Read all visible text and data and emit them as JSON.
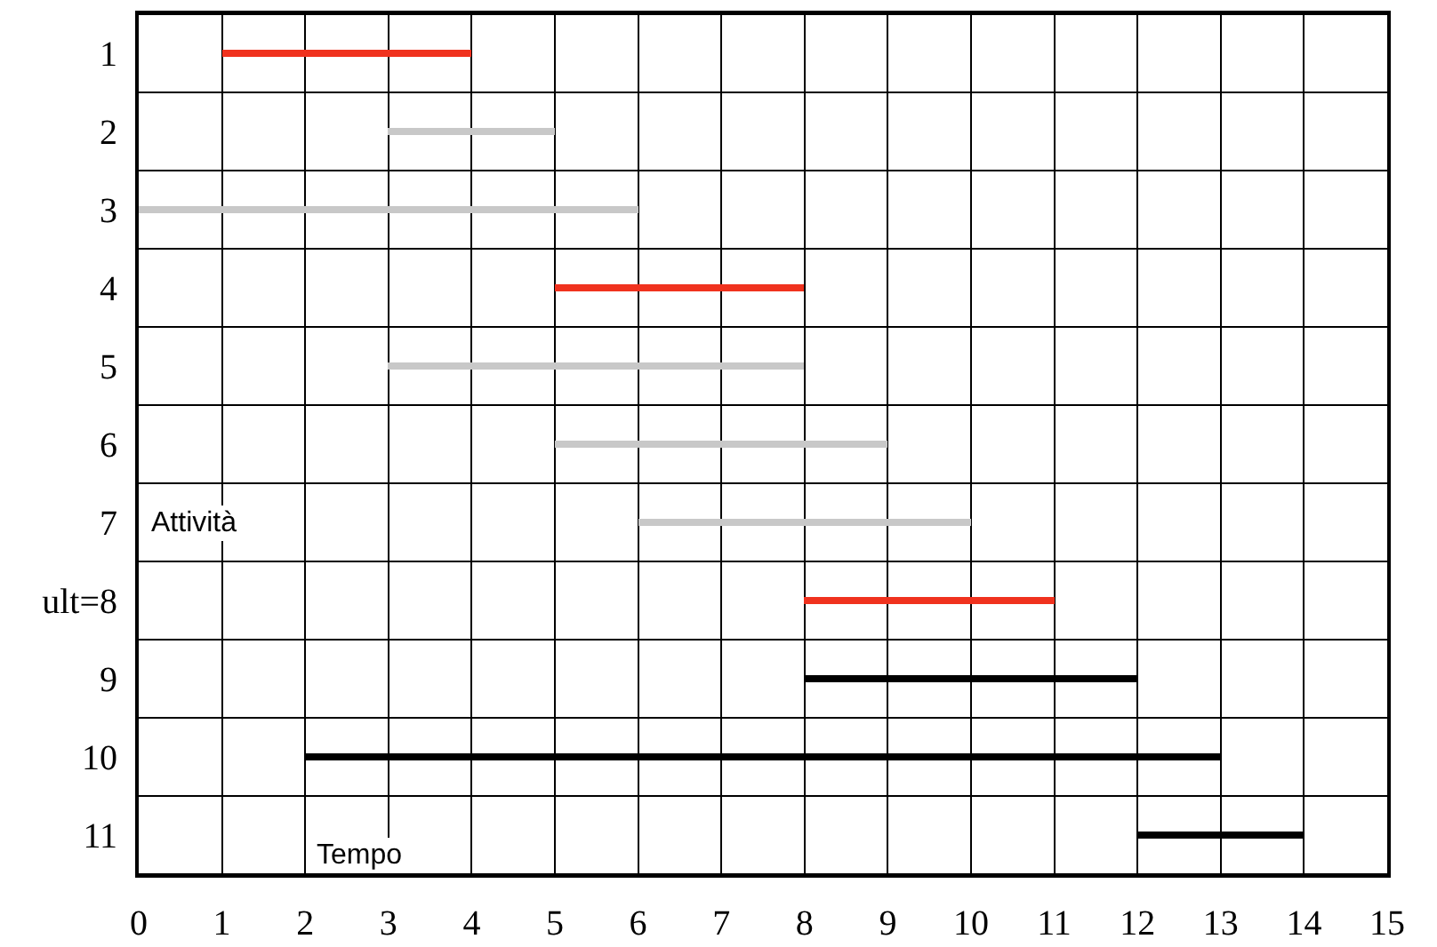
{
  "chart_data": {
    "type": "bar",
    "orientation": "horizontal",
    "categories": [
      "1",
      "2",
      "3",
      "4",
      "5",
      "6",
      "7",
      "ult=8",
      "9",
      "10",
      "11"
    ],
    "base": [
      1,
      3,
      0,
      5,
      3,
      5,
      6,
      8,
      8,
      2,
      12
    ],
    "values": [
      3,
      2,
      6,
      3,
      5,
      4,
      4,
      3,
      4,
      11,
      2
    ],
    "colors": [
      "#f0321e",
      "#c8c8c8",
      "#c8c8c8",
      "#f0321e",
      "#c8c8c8",
      "#c8c8c8",
      "#c8c8c8",
      "#f0321e",
      "#000000",
      "#000000",
      "#000000"
    ],
    "xlim": [
      0,
      15
    ],
    "xticks": [
      0,
      1,
      2,
      3,
      4,
      5,
      6,
      7,
      8,
      9,
      10,
      11,
      12,
      13,
      14,
      15
    ],
    "grid": true,
    "xlabel": "Tempo",
    "ylabel": "Attività"
  }
}
